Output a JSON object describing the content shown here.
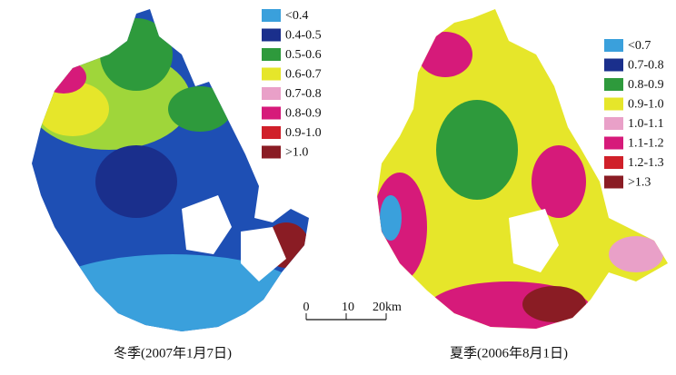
{
  "left_map": {
    "caption": "冬季(2007年1月7日)",
    "legend": [
      {
        "label": "<0.4",
        "color": "#3aa0dc"
      },
      {
        "label": "0.4-0.5",
        "color": "#1a2f8c"
      },
      {
        "label": "0.5-0.6",
        "color": "#2e9a3c"
      },
      {
        "label": "0.6-0.7",
        "color": "#e6e62a"
      },
      {
        "label": "0.7-0.8",
        "color": "#e9a0c8"
      },
      {
        "label": "0.8-0.9",
        "color": "#d61a7a"
      },
      {
        "label": "0.9-1.0",
        "color": "#d0202a"
      },
      {
        "label": ">1.0",
        "color": "#8a1c24"
      }
    ]
  },
  "right_map": {
    "caption": "夏季(2006年8月1日)",
    "legend": [
      {
        "label": "<0.7",
        "color": "#3aa0dc"
      },
      {
        "label": "0.7-0.8",
        "color": "#1a2f8c"
      },
      {
        "label": "0.8-0.9",
        "color": "#2e9a3c"
      },
      {
        "label": "0.9-1.0",
        "color": "#e6e62a"
      },
      {
        "label": "1.0-1.1",
        "color": "#e9a0c8"
      },
      {
        "label": "1.1-1.2",
        "color": "#d61a7a"
      },
      {
        "label": "1.2-1.3",
        "color": "#d0202a"
      },
      {
        "label": ">1.3",
        "color": "#8a1c24"
      }
    ]
  },
  "scale_bar": {
    "labels": [
      "0",
      "10",
      "20km"
    ]
  }
}
